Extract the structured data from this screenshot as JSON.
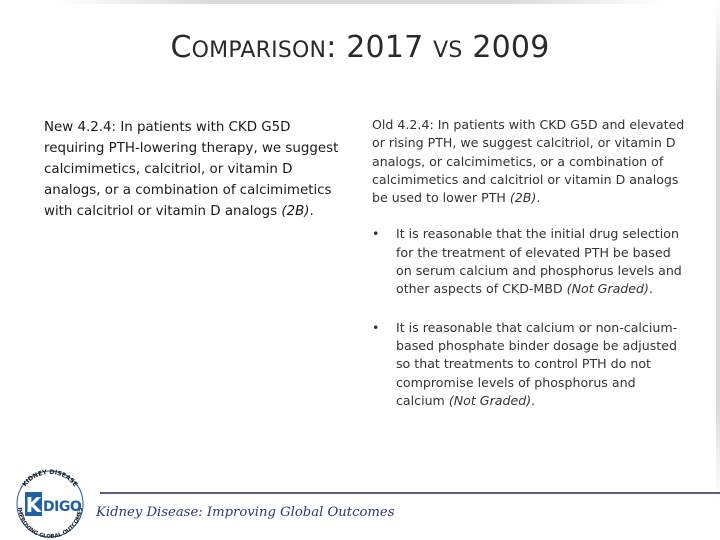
{
  "title": {
    "part1_initial": "C",
    "part1_rest": "OMPARISON",
    "part1_colon": ":",
    "year_new": "2017",
    "vs": "VS",
    "year_old": "2009"
  },
  "new_rec": {
    "label": "New 4.2.4",
    "text": ": In patients with CKD G5D requiring PTH-lowering therapy, we suggest calcimimetics, calcitriol, or vitamin D analogs, or a combination of calcimimetics with calcitriol or vitamin D analogs ",
    "grade": "(2B)",
    "end": "."
  },
  "old_rec": {
    "label": "Old 4.2.4",
    "text": ": In patients with CKD G5D and elevated or rising PTH, we suggest calcitriol, or vitamin D analogs, or calcimimetics, or a combination of calcimimetics and calcitriol or vitamin D analogs be used to lower PTH ",
    "grade": "(2B)",
    "end": ".",
    "bullets": [
      {
        "marker": "•",
        "text": "It  is reasonable that the initial drug selection for the treatment of elevated PTH be based on serum calcium and phosphorus levels and other aspects of CKD-MBD ",
        "grade": "(Not Graded)",
        "end": "."
      },
      {
        "marker": "•",
        "text": "It is reasonable that calcium or non-calcium-based phosphate binder dosage be adjusted so that treatments to control PTH do not compromise levels of phosphorus and calcium ",
        "grade": "(Not Graded)",
        "end": "."
      }
    ]
  },
  "footer": {
    "org_name": "Kidney Disease: Improving Global Outcomes",
    "logo_word": "KDIGO",
    "logo_ring_top": "KIDNEY DISEASE",
    "logo_ring_bottom": "IMPROVING GLOBAL OUTCOMES"
  },
  "colors": {
    "footer_rule": "#5b5b8c",
    "footer_text": "#2a3a78",
    "logo_blue": "#1f5fa8"
  }
}
